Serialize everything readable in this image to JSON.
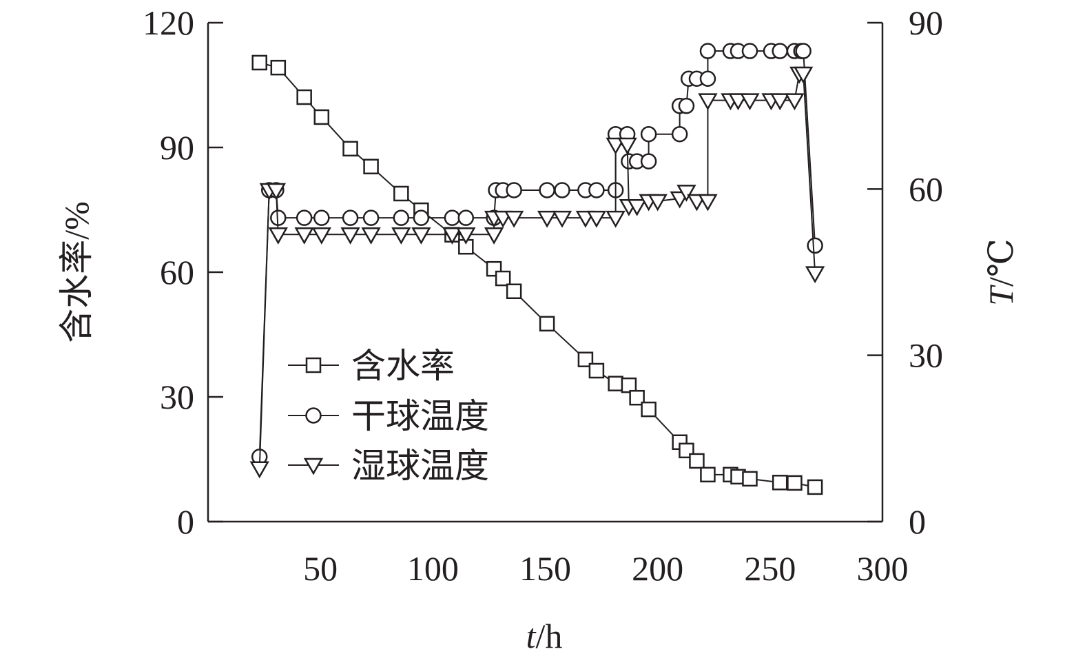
{
  "chart_data": {
    "type": "line",
    "title": "",
    "xlabel_italic": "t",
    "xlabel_unit": "/h",
    "ylabel": "含水率/%",
    "y2label_italic": "T",
    "y2label_unit": "/℃",
    "xlim": [
      0,
      300
    ],
    "ylim": [
      0,
      120
    ],
    "y2lim": [
      0,
      90
    ],
    "xticks": [
      50,
      100,
      150,
      200,
      250,
      300
    ],
    "yticks": [
      0,
      30,
      60,
      90,
      120
    ],
    "y2ticks": [
      0,
      30,
      60,
      90
    ],
    "grid": false,
    "legend_position": "lower-left",
    "series": [
      {
        "name": "含水率",
        "axis": "left",
        "marker": "square",
        "x": [
          22.9,
          31.2,
          42.8,
          50.5,
          63.3,
          72.5,
          85.9,
          94.8,
          108.6,
          114.7,
          127.2,
          131.2,
          136.1,
          150.8,
          167.9,
          172.8,
          181.3,
          187.2,
          190.8,
          196.0,
          209.8,
          212.8,
          217.4,
          222.3,
          232.4,
          235.8,
          241.0,
          254.4,
          260.9,
          270.0
        ],
        "y": [
          110.4,
          109.2,
          102.1,
          97.3,
          89.7,
          85.4,
          78.9,
          74.9,
          69.0,
          66.1,
          60.8,
          58.5,
          55.4,
          47.6,
          39.0,
          36.3,
          33.2,
          32.8,
          29.8,
          27.0,
          19.1,
          17.1,
          14.6,
          11.3,
          11.3,
          10.8,
          10.3,
          9.4,
          9.3,
          8.3
        ]
      },
      {
        "name": "干球温度",
        "axis": "right",
        "marker": "circle",
        "x": [
          22.9,
          27.2,
          30.3,
          31.2,
          42.8,
          50.5,
          63.3,
          72.5,
          85.9,
          94.8,
          108.6,
          114.7,
          127.2,
          128.1,
          131.2,
          136.1,
          150.8,
          157.5,
          167.9,
          172.8,
          181.3,
          181.3,
          186.5,
          187.2,
          190.8,
          196.0,
          196.0,
          209.8,
          209.8,
          212.8,
          213.8,
          217.4,
          222.3,
          222.3,
          232.4,
          235.8,
          241.0,
          250.5,
          254.4,
          260.9,
          263.9,
          264.8,
          270.0
        ],
        "y": [
          11.7,
          59.8,
          59.8,
          54.8,
          54.8,
          54.8,
          54.8,
          54.8,
          54.8,
          54.8,
          54.8,
          54.8,
          54.8,
          59.8,
          59.8,
          59.8,
          59.8,
          59.8,
          59.8,
          59.8,
          59.8,
          69.9,
          69.9,
          65.0,
          65.0,
          65.0,
          69.9,
          69.9,
          75.0,
          75.0,
          79.9,
          79.9,
          79.9,
          84.9,
          84.9,
          84.9,
          84.9,
          84.9,
          84.9,
          84.9,
          84.9,
          84.9,
          49.8
        ]
      },
      {
        "name": "湿球温度",
        "axis": "right",
        "marker": "triangle-down",
        "x": [
          22.9,
          27.2,
          30.3,
          31.2,
          42.8,
          50.5,
          63.3,
          72.5,
          85.9,
          94.8,
          108.6,
          114.7,
          127.2,
          127.2,
          131.2,
          136.1,
          150.8,
          157.5,
          167.9,
          172.8,
          181.3,
          181.3,
          186.5,
          187.2,
          190.8,
          196.0,
          200.0,
          209.8,
          212.8,
          217.4,
          222.3,
          222.3,
          232.4,
          235.8,
          241.0,
          250.5,
          254.4,
          260.9,
          263.0,
          264.8,
          270.0
        ],
        "y": [
          9.6,
          59.8,
          59.8,
          51.8,
          51.8,
          51.8,
          51.8,
          51.8,
          51.8,
          51.8,
          51.8,
          51.8,
          51.8,
          54.8,
          54.8,
          54.8,
          54.8,
          54.8,
          54.8,
          54.8,
          54.8,
          68.0,
          68.0,
          56.9,
          56.9,
          57.8,
          57.8,
          58.3,
          59.5,
          57.8,
          57.8,
          76.0,
          76.0,
          76.0,
          76.0,
          76.0,
          76.0,
          76.0,
          80.8,
          80.8,
          44.8
        ]
      }
    ],
    "colors": {
      "ink": "#231f20",
      "background": "#ffffff"
    }
  }
}
